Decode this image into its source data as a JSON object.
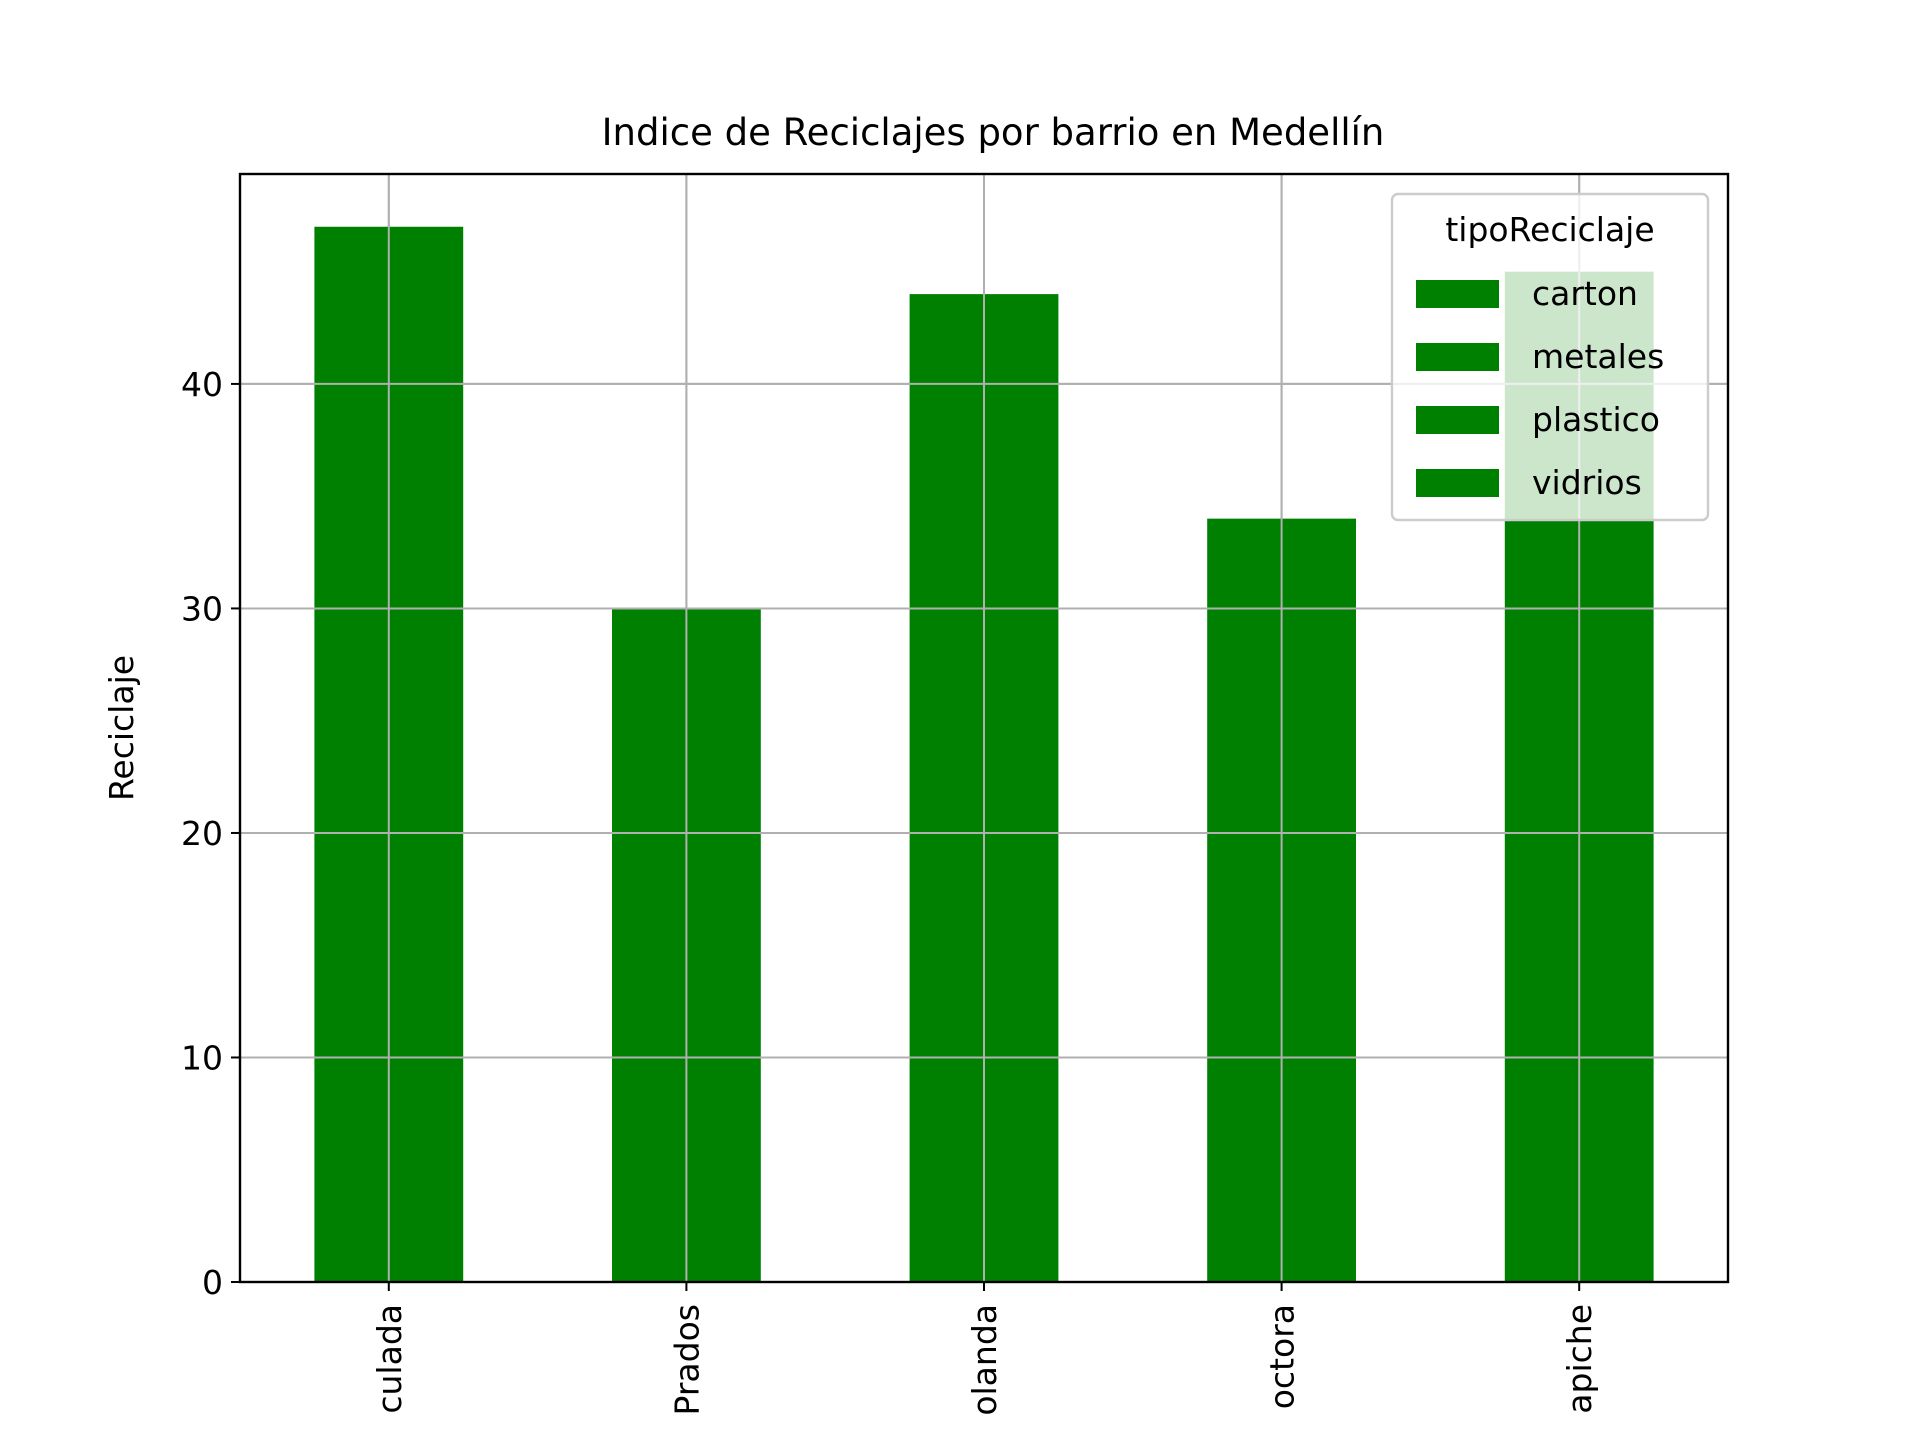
{
  "chart_data": {
    "type": "bar",
    "title": "Indice de Reciclajes por barrio en Medellín",
    "xlabel": "",
    "ylabel": "Reciclaje",
    "categories": [
      "culada",
      "Prados",
      "olanda",
      "octora",
      "apiche"
    ],
    "values": [
      47,
      30,
      44,
      34,
      45
    ],
    "ylim": [
      0,
      49.35
    ],
    "yticks": [
      0,
      10,
      20,
      30,
      40
    ],
    "grid": true,
    "bar_color": "#008000",
    "legend": {
      "title": "tipoReciclaje",
      "placement": "top-right",
      "entries": [
        "carton",
        "metales",
        "plastico",
        "vidrios"
      ]
    }
  }
}
